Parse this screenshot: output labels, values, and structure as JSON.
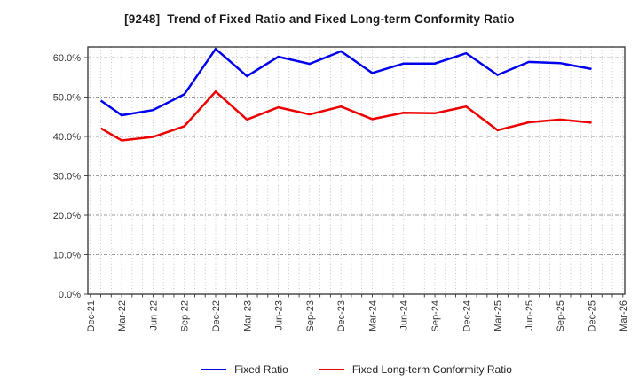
{
  "chart_data": {
    "type": "line",
    "title": "[9248]  Trend of Fixed Ratio and Fixed Long-term Conformity Ratio",
    "categories": [
      "Dec-21",
      "Mar-22",
      "Jun-22",
      "Sep-22",
      "Dec-22",
      "Mar-23",
      "Jun-23",
      "Sep-23",
      "Dec-23",
      "Mar-24",
      "Jun-24",
      "Sep-24",
      "Dec-24",
      "Mar-25",
      "Jun-25",
      "Sep-25",
      "Dec-25",
      "Mar-26"
    ],
    "series": [
      {
        "name": "Fixed Ratio",
        "color": "#0000ee",
        "values": [
          49.1,
          45.4,
          46.7,
          50.7,
          62.2,
          55.3,
          60.2,
          58.4,
          61.6,
          56.1,
          58.5,
          58.5,
          61.1,
          55.6,
          58.9,
          58.6,
          57.1
        ]
      },
      {
        "name": "Fixed Long-term Conformity Ratio",
        "color": "#ee0000",
        "values": [
          42.1,
          39.0,
          39.9,
          42.6,
          51.4,
          44.3,
          47.4,
          45.6,
          47.6,
          44.4,
          46.0,
          45.9,
          47.6,
          41.6,
          43.6,
          44.3,
          43.5
        ]
      }
    ],
    "point_month_positions": [
      1,
      3,
      6,
      9,
      12,
      15,
      18,
      21,
      24,
      27,
      30,
      33,
      36,
      39,
      42,
      45,
      48
    ],
    "x_months_span": 51,
    "xlabel": "",
    "ylabel": "",
    "ylim": [
      0,
      62.7
    ],
    "ytick_step": 10,
    "ytick_format": "percent-1dp",
    "grid": true,
    "minor_x_grid": "monthly",
    "legend_position": "bottom",
    "colors": {
      "axis": "#333333",
      "tick_text": "#333333",
      "h_grid": "#999999",
      "v_grid": "#b5b5b5",
      "background": "#ffffff"
    }
  }
}
